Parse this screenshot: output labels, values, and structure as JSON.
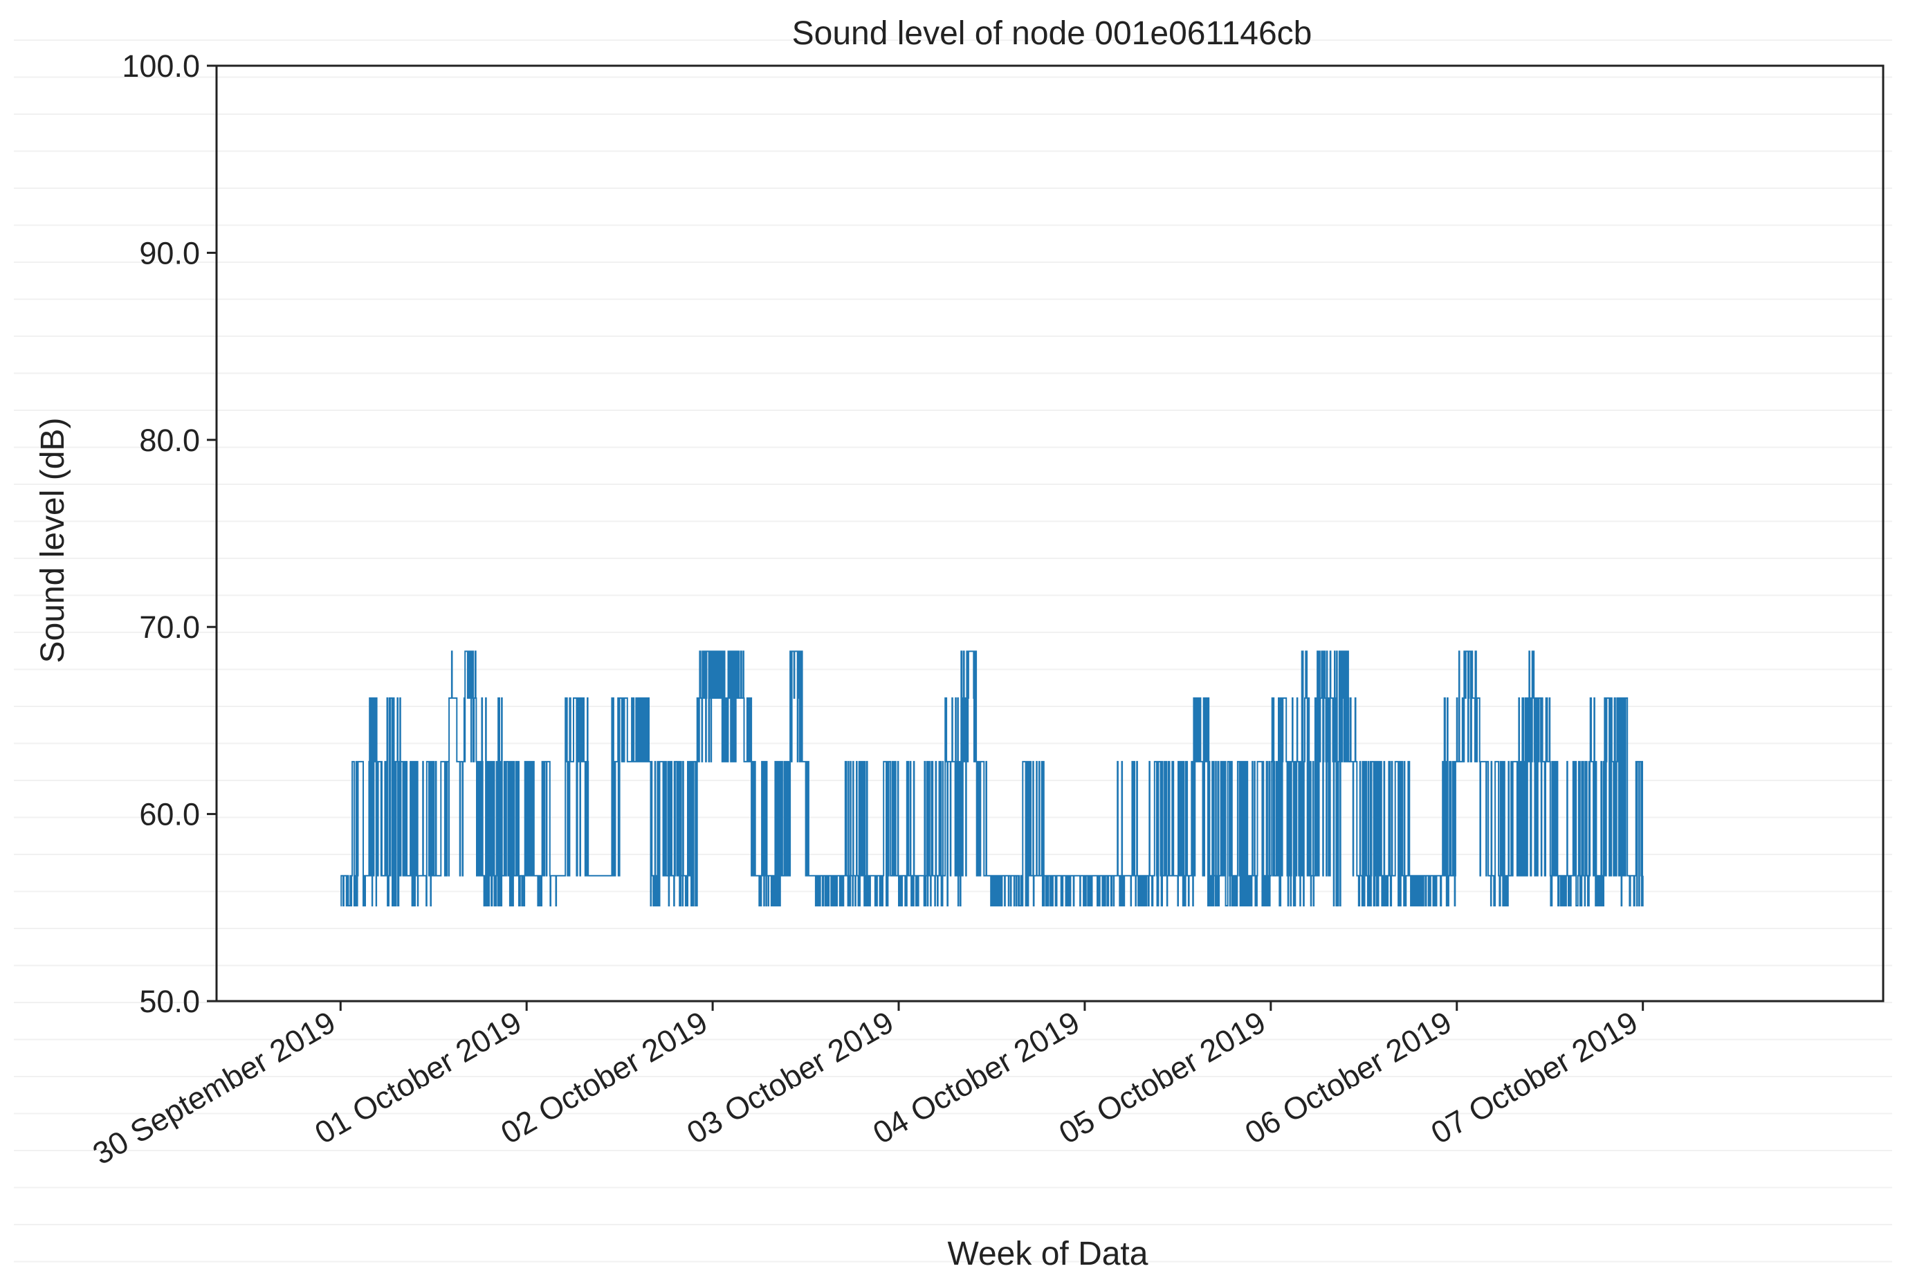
{
  "chart_data": {
    "type": "line",
    "title": "Sound level of node 001e061146cb",
    "xlabel": "Week of Data",
    "ylabel": "Sound level (dB)",
    "ylim": [
      50,
      100
    ],
    "xlim": [
      "2019-09-29T08:00",
      "2019-10-08T07:00"
    ],
    "yticks": [
      50,
      60,
      70,
      80,
      90,
      100
    ],
    "ytick_labels": [
      "50.0",
      "60.0",
      "70.0",
      "80.0",
      "90.0",
      "100.0"
    ],
    "xticks": [
      "2019-09-30",
      "2019-10-01",
      "2019-10-02",
      "2019-10-03",
      "2019-10-04",
      "2019-10-05",
      "2019-10-06",
      "2019-10-07"
    ],
    "xtick_labels": [
      "30 September 2019",
      "01 October 2019",
      "02 October 2019",
      "03 October 2019",
      "04 October 2019",
      "05 October 2019",
      "06 October 2019",
      "07 October 2019"
    ],
    "grid": false,
    "series": [
      {
        "color": "#1f77b4",
        "x": [
          "2019-09-30T00:00",
          "2019-09-30T01:30",
          "2019-09-30T03:00",
          "2019-09-30T03:40",
          "2019-09-30T04:20",
          "2019-09-30T05:00",
          "2019-09-30T06:00",
          "2019-09-30T07:00",
          "2019-09-30T08:00",
          "2019-09-30T09:00",
          "2019-09-30T10:00",
          "2019-09-30T11:00",
          "2019-09-30T12:00",
          "2019-09-30T13:00",
          "2019-09-30T14:00",
          "2019-09-30T15:00",
          "2019-09-30T16:00",
          "2019-09-30T17:00",
          "2019-09-30T17:30",
          "2019-09-30T18:00",
          "2019-09-30T19:00",
          "2019-09-30T20:00",
          "2019-09-30T21:00",
          "2019-09-30T22:00",
          "2019-09-30T23:00",
          "2019-10-01T00:00",
          "2019-10-01T01:00",
          "2019-10-01T02:00",
          "2019-10-01T03:00",
          "2019-10-01T04:00",
          "2019-10-01T05:00",
          "2019-10-01T06:00",
          "2019-10-01T07:00",
          "2019-10-01T08:00",
          "2019-10-01T09:00",
          "2019-10-01T10:00",
          "2019-10-01T11:00",
          "2019-10-01T12:00",
          "2019-10-01T13:00",
          "2019-10-01T14:00",
          "2019-10-01T15:00",
          "2019-10-01T16:00",
          "2019-10-01T17:00",
          "2019-10-01T18:00",
          "2019-10-01T19:00",
          "2019-10-01T20:00",
          "2019-10-01T21:00",
          "2019-10-01T22:00",
          "2019-10-01T23:00",
          "2019-10-02T00:00",
          "2019-10-02T01:00",
          "2019-10-02T02:00",
          "2019-10-02T03:00",
          "2019-10-02T04:00",
          "2019-10-02T05:00",
          "2019-10-02T06:00",
          "2019-10-02T07:00",
          "2019-10-02T08:00",
          "2019-10-02T09:00",
          "2019-10-02T10:00",
          "2019-10-02T11:00",
          "2019-10-02T12:00",
          "2019-10-02T13:00",
          "2019-10-02T14:00",
          "2019-10-02T15:00",
          "2019-10-02T16:00",
          "2019-10-02T17:00",
          "2019-10-02T18:00",
          "2019-10-02T19:00",
          "2019-10-02T20:00",
          "2019-10-02T21:00",
          "2019-10-02T22:00",
          "2019-10-02T23:00",
          "2019-10-03T00:00",
          "2019-10-03T01:00",
          "2019-10-03T02:00",
          "2019-10-03T03:00",
          "2019-10-03T04:00",
          "2019-10-03T05:00",
          "2019-10-03T06:00",
          "2019-10-03T07:00",
          "2019-10-03T08:00",
          "2019-10-03T09:00",
          "2019-10-03T10:00",
          "2019-10-03T11:00",
          "2019-10-03T12:00",
          "2019-10-03T13:00",
          "2019-10-03T14:00",
          "2019-10-03T15:00",
          "2019-10-03T16:00",
          "2019-10-03T17:00",
          "2019-10-03T18:00",
          "2019-10-03T19:00",
          "2019-10-03T20:00",
          "2019-10-03T21:00",
          "2019-10-03T22:00",
          "2019-10-03T23:00",
          "2019-10-04T00:00",
          "2019-10-04T01:00",
          "2019-10-04T02:00",
          "2019-10-04T03:00",
          "2019-10-04T04:00",
          "2019-10-04T05:00",
          "2019-10-04T06:00",
          "2019-10-04T07:00",
          "2019-10-04T08:00",
          "2019-10-04T09:00",
          "2019-10-04T10:00",
          "2019-10-04T11:00",
          "2019-10-04T12:00",
          "2019-10-04T13:00",
          "2019-10-04T14:00",
          "2019-10-04T15:00",
          "2019-10-04T16:00",
          "2019-10-04T17:00",
          "2019-10-04T18:00",
          "2019-10-04T19:00",
          "2019-10-04T20:00",
          "2019-10-04T21:00",
          "2019-10-04T22:00",
          "2019-10-04T23:00",
          "2019-10-05T00:00",
          "2019-10-05T01:00",
          "2019-10-05T02:00",
          "2019-10-05T03:00",
          "2019-10-05T04:00",
          "2019-10-05T05:00",
          "2019-10-05T06:00",
          "2019-10-05T07:00",
          "2019-10-05T08:00",
          "2019-10-05T09:00",
          "2019-10-05T10:00",
          "2019-10-05T11:00",
          "2019-10-05T12:00",
          "2019-10-05T13:00",
          "2019-10-05T14:00",
          "2019-10-05T15:00",
          "2019-10-05T16:00",
          "2019-10-05T17:00",
          "2019-10-05T18:00",
          "2019-10-05T19:00",
          "2019-10-05T20:00",
          "2019-10-05T21:00",
          "2019-10-05T22:00",
          "2019-10-05T23:00",
          "2019-10-06T00:00",
          "2019-10-06T01:00",
          "2019-10-06T02:00",
          "2019-10-06T03:00",
          "2019-10-06T04:00",
          "2019-10-06T05:00",
          "2019-10-06T06:00",
          "2019-10-06T07:00",
          "2019-10-06T08:00",
          "2019-10-06T09:00",
          "2019-10-06T10:00",
          "2019-10-06T11:00",
          "2019-10-06T12:00",
          "2019-10-06T13:00",
          "2019-10-06T14:00",
          "2019-10-06T15:00",
          "2019-10-06T16:00",
          "2019-10-06T17:00",
          "2019-10-06T18:00",
          "2019-10-06T19:00",
          "2019-10-06T20:00",
          "2019-10-06T21:00",
          "2019-10-06T22:00",
          "2019-10-06T23:00",
          "2019-10-07T00:00"
        ],
        "y": [
          56.7,
          62.8,
          56.7,
          66.2,
          62.8,
          56.7,
          66.2,
          62.8,
          56.7,
          62.8,
          56.7,
          62.8,
          56.7,
          62.8,
          66.2,
          62.8,
          68.7,
          66.2,
          62.8,
          56.7,
          62.8,
          56.7,
          62.8,
          56.7,
          56.7,
          56.7,
          56.7,
          62.8,
          56.7,
          56.7,
          62.8,
          66.2,
          62.8,
          56.7,
          56.7,
          56.7,
          62.8,
          66.2,
          62.8,
          62.8,
          62.8,
          56.7,
          62.8,
          56.7,
          62.8,
          56.7,
          62.8,
          66.2,
          68.7,
          66.2,
          66.2,
          68.7,
          66.2,
          62.8,
          56.7,
          56.7,
          56.7,
          62.8,
          56.7,
          68.7,
          62.8,
          56.7,
          56.7,
          56.7,
          56.7,
          56.7,
          56.7,
          56.7,
          56.7,
          56.7,
          56.7,
          62.8,
          56.7,
          56.7,
          56.7,
          56.7,
          56.7,
          56.7,
          56.7,
          62.8,
          56.7,
          66.2,
          68.7,
          62.8,
          56.7,
          56.7,
          56.7,
          56.7,
          56.7,
          62.8,
          56.7,
          56.7,
          56.7,
          56.7,
          56.7,
          56.7,
          56.7,
          56.7,
          56.7,
          56.7,
          56.7,
          56.7,
          56.7,
          56.7,
          56.7,
          56.7,
          62.8,
          56.7,
          56.7,
          62.8,
          56.7,
          66.2,
          62.8,
          56.7,
          56.7,
          62.8,
          56.7,
          62.8,
          56.7,
          62.8,
          56.7,
          62.8,
          66.2,
          62.8,
          62.8,
          66.2,
          56.7,
          68.7,
          66.2,
          62.8,
          68.7,
          62.8,
          56.7,
          56.7,
          62.8,
          56.7,
          56.7,
          62.8,
          56.7,
          56.7,
          56.7,
          56.7,
          56.7,
          56.7,
          62.8,
          62.8,
          68.7,
          66.2,
          62.8,
          56.7,
          62.8,
          56.7,
          62.8,
          56.7,
          66.2,
          62.8,
          62.8,
          56.7,
          56.7,
          56.7,
          62.8,
          56.7,
          62.8,
          56.7,
          66.2,
          62.8,
          66.2,
          56.7,
          62.8,
          56.7
        ],
        "min_envelope": [
          55.1,
          55.1,
          55.1,
          55.1,
          55.1,
          56.7,
          55.1,
          55.1,
          56.7,
          55.1,
          56.7,
          55.1,
          56.7,
          56.7,
          62.8,
          56.7,
          62.8,
          62.8,
          56.7,
          55.1,
          55.1,
          55.1,
          55.1,
          55.1,
          55.1,
          56.7,
          55.1,
          56.7,
          55.1,
          56.7,
          56.7,
          56.7,
          56.7,
          56.7,
          56.7,
          56.7,
          56.7,
          62.8,
          62.8,
          62.8,
          62.8,
          55.1,
          55.1,
          55.1,
          55.1,
          55.1,
          55.1,
          62.8,
          62.8,
          66.2,
          62.8,
          62.8,
          62.8,
          62.8,
          56.7,
          55.1,
          55.1,
          55.1,
          56.7,
          62.8,
          56.7,
          55.1,
          55.1,
          55.1,
          55.1,
          55.1,
          55.1,
          55.1,
          55.1,
          55.1,
          55.1,
          55.1,
          56.7,
          55.1,
          55.1,
          55.1,
          55.1,
          55.1,
          55.1,
          55.1,
          55.1,
          56.7,
          62.8,
          56.7,
          55.1,
          55.1,
          55.1,
          55.1,
          55.1,
          55.1,
          55.1,
          55.1,
          55.1,
          55.1,
          55.1,
          55.1,
          55.1,
          55.1,
          55.1,
          55.1,
          55.1,
          55.1,
          55.1,
          55.1,
          55.1,
          55.1,
          55.1,
          55.1,
          55.1,
          55.1,
          55.1,
          56.7,
          55.1,
          55.1,
          55.1,
          55.1,
          55.1,
          55.1,
          55.1,
          55.1,
          55.1,
          56.7,
          55.1,
          55.1,
          55.1,
          55.1,
          55.1,
          56.7,
          56.7,
          55.1,
          62.8,
          56.7,
          55.1,
          55.1,
          55.1,
          55.1,
          55.1,
          55.1,
          55.1,
          55.1,
          55.1,
          55.1,
          55.1,
          55.1,
          55.1,
          62.8,
          62.8,
          62.8,
          56.7,
          55.1,
          55.1,
          55.1,
          56.7,
          56.7,
          56.7,
          56.7,
          56.7,
          55.1,
          55.1,
          55.1,
          55.1,
          55.1,
          55.1,
          55.1,
          56.7,
          56.7,
          55.1,
          55.1,
          55.1,
          55.1
        ],
        "max_envelope": [
          56.7,
          62.8,
          56.7,
          66.2,
          66.2,
          62.8,
          66.2,
          66.2,
          62.8,
          62.8,
          62.8,
          62.8,
          62.8,
          62.8,
          68.7,
          66.2,
          68.7,
          68.7,
          62.8,
          66.2,
          62.8,
          66.2,
          62.8,
          62.8,
          62.8,
          62.8,
          56.7,
          62.8,
          62.8,
          56.7,
          66.2,
          66.2,
          66.2,
          56.7,
          56.7,
          56.7,
          66.2,
          66.2,
          66.2,
          66.2,
          66.2,
          62.8,
          62.8,
          62.8,
          62.8,
          62.8,
          62.8,
          68.7,
          68.7,
          68.7,
          68.7,
          68.7,
          68.7,
          66.2,
          62.8,
          62.8,
          56.7,
          62.8,
          62.8,
          68.7,
          68.7,
          62.8,
          56.7,
          56.7,
          56.7,
          56.7,
          62.8,
          62.8,
          62.8,
          56.7,
          56.7,
          62.8,
          62.8,
          56.7,
          62.8,
          56.7,
          62.8,
          62.8,
          62.8,
          66.2,
          66.2,
          68.7,
          68.7,
          62.8,
          62.8,
          56.7,
          56.7,
          56.7,
          56.7,
          62.8,
          62.8,
          62.8,
          56.7,
          56.7,
          56.7,
          56.7,
          56.7,
          56.7,
          56.7,
          56.7,
          56.7,
          62.8,
          56.7,
          62.8,
          56.7,
          62.8,
          62.8,
          62.8,
          62.8,
          62.8,
          62.8,
          66.2,
          66.2,
          62.8,
          62.8,
          62.8,
          62.8,
          62.8,
          62.8,
          62.8,
          62.8,
          66.2,
          66.2,
          66.2,
          66.2,
          68.7,
          66.2,
          68.7,
          68.7,
          68.7,
          68.7,
          66.2,
          62.8,
          62.8,
          62.8,
          62.8,
          62.8,
          62.8,
          62.8,
          56.7,
          56.7,
          56.7,
          56.7,
          66.2,
          62.8,
          68.7,
          68.7,
          68.7,
          66.2,
          62.8,
          62.8,
          62.8,
          62.8,
          66.2,
          68.7,
          66.2,
          66.2,
          62.8,
          56.7,
          62.8,
          62.8,
          62.8,
          66.2,
          62.8,
          66.2,
          66.2,
          66.2,
          56.7,
          62.8,
          62.8
        ]
      }
    ]
  }
}
